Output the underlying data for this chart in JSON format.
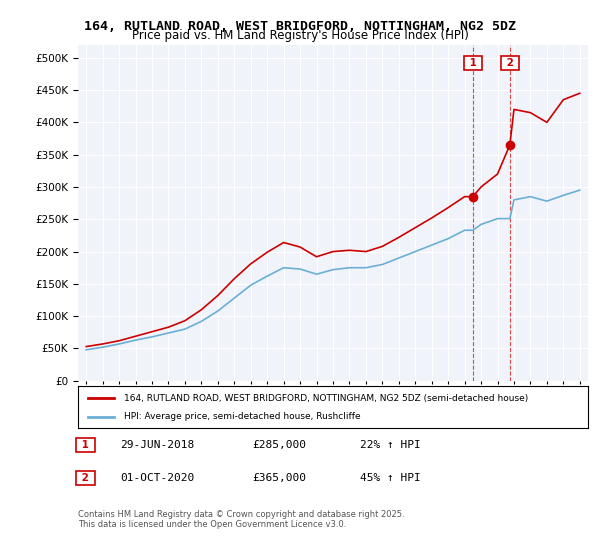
{
  "title_line1": "164, RUTLAND ROAD, WEST BRIDGFORD, NOTTINGHAM, NG2 5DZ",
  "title_line2": "Price paid vs. HM Land Registry's House Price Index (HPI)",
  "ylabel": "",
  "xlabel": "",
  "legend_entry1": "164, RUTLAND ROAD, WEST BRIDGFORD, NOTTINGHAM, NG2 5DZ (semi-detached house)",
  "legend_entry2": "HPI: Average price, semi-detached house, Rushcliffe",
  "annotation1_label": "1",
  "annotation1_date": "29-JUN-2018",
  "annotation1_price": "£285,000",
  "annotation1_hpi": "22% ↑ HPI",
  "annotation1_year": 2018.5,
  "annotation1_value": 285000,
  "annotation2_label": "2",
  "annotation2_date": "01-OCT-2020",
  "annotation2_price": "£365,000",
  "annotation2_hpi": "45% ↑ HPI",
  "annotation2_year": 2020.75,
  "annotation2_value": 365000,
  "footer": "Contains HM Land Registry data © Crown copyright and database right 2025.\nThis data is licensed under the Open Government Licence v3.0.",
  "hpi_color": "#6baed6",
  "price_color": "#cc0000",
  "background_color": "#f0f4fa",
  "ylim_min": 0,
  "ylim_max": 520000,
  "xlim_min": 1994.5,
  "xlim_max": 2025.5,
  "hpi_years": [
    1995,
    1996,
    1997,
    1998,
    1999,
    2000,
    2001,
    2002,
    2003,
    2004,
    2005,
    2006,
    2007,
    2008,
    2009,
    2010,
    2011,
    2012,
    2013,
    2014,
    2015,
    2016,
    2017,
    2018,
    2018.5,
    2019,
    2020,
    2020.75,
    2021,
    2022,
    2023,
    2024,
    2025
  ],
  "hpi_values": [
    48000,
    52000,
    57000,
    63000,
    68000,
    74000,
    80000,
    92000,
    108000,
    128000,
    148000,
    162000,
    175000,
    173000,
    165000,
    172000,
    175000,
    175000,
    180000,
    190000,
    200000,
    210000,
    220000,
    233000,
    233000,
    242000,
    251000,
    251000,
    280000,
    285000,
    278000,
    287000,
    295000
  ],
  "price_years": [
    1995,
    1996,
    1997,
    1998,
    1999,
    2000,
    2001,
    2002,
    2003,
    2004,
    2005,
    2006,
    2007,
    2008,
    2009,
    2010,
    2011,
    2012,
    2013,
    2014,
    2015,
    2016,
    2017,
    2018,
    2018.5,
    2019,
    2020,
    2020.75,
    2021,
    2022,
    2023,
    2024,
    2025
  ],
  "price_values": [
    53000,
    57000,
    62000,
    69000,
    76000,
    83000,
    93000,
    110000,
    132000,
    158000,
    181000,
    199000,
    214000,
    207000,
    192000,
    200000,
    202000,
    200000,
    208000,
    222000,
    237000,
    252000,
    268000,
    285000,
    285000,
    300000,
    320000,
    365000,
    420000,
    415000,
    400000,
    435000,
    445000
  ]
}
